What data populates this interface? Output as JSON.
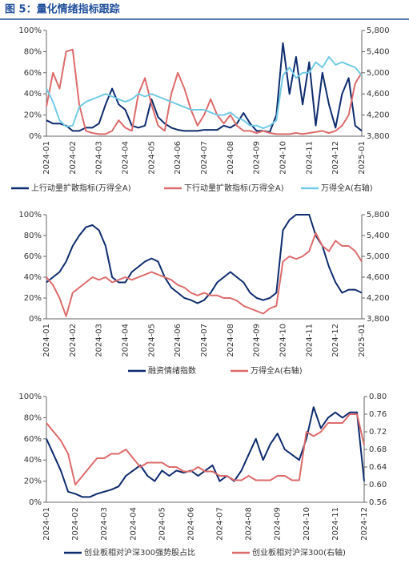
{
  "title": "图 5：量化情绪指标跟踪",
  "chart_data": [
    {
      "type": "line",
      "categories": [
        "2024-01",
        null,
        null,
        null,
        "2024-02",
        null,
        null,
        null,
        "2024-03",
        null,
        null,
        null,
        "2024-04",
        null,
        null,
        null,
        "2024-05",
        null,
        null,
        null,
        "2024-06",
        null,
        null,
        null,
        "2024-07",
        null,
        null,
        null,
        "2024-08",
        null,
        null,
        null,
        "2024-09",
        null,
        null,
        null,
        "2024-10",
        null,
        null,
        null,
        "2024-11",
        null,
        null,
        null,
        "2024-12",
        null,
        null,
        null,
        "2025-01"
      ],
      "ylim": [
        0,
        100
      ],
      "yticks": [
        {
          "value": 0,
          "label": "0%"
        },
        {
          "value": 20,
          "label": "20%"
        },
        {
          "value": 40,
          "label": "40%"
        },
        {
          "value": 60,
          "label": "60%"
        },
        {
          "value": 80,
          "label": "80%"
        },
        {
          "value": 100,
          "label": "100%"
        }
      ],
      "y2lim": [
        3800,
        5800
      ],
      "y2ticks": [
        {
          "value": 3800,
          "label": "3,800"
        },
        {
          "value": 4200,
          "label": "4,200"
        },
        {
          "value": 4600,
          "label": "4,600"
        },
        {
          "value": 5000,
          "label": "5,000"
        },
        {
          "value": 5400,
          "label": "5,400"
        },
        {
          "value": 5800,
          "label": "5,800"
        }
      ],
      "series": [
        {
          "name": "上行动量扩散指标(万得全A)",
          "color": "#0d2b6e",
          "values": [
            15,
            12,
            12,
            10,
            5,
            5,
            8,
            8,
            12,
            30,
            45,
            30,
            25,
            10,
            8,
            10,
            35,
            18,
            12,
            8,
            6,
            5,
            5,
            5,
            6,
            6,
            6,
            10,
            8,
            12,
            22,
            12,
            5,
            5,
            4,
            20,
            88,
            40,
            75,
            30,
            70,
            10,
            60,
            30,
            8,
            40,
            55,
            10,
            5
          ]
        },
        {
          "name": "下行动量扩散指标(万得全A)",
          "color": "#dd6b6b",
          "values": [
            28,
            60,
            45,
            80,
            82,
            30,
            5,
            3,
            2,
            2,
            5,
            15,
            8,
            5,
            40,
            55,
            30,
            10,
            5,
            40,
            60,
            45,
            25,
            10,
            20,
            35,
            20,
            12,
            20,
            10,
            5,
            5,
            3,
            5,
            3,
            2,
            2,
            2,
            3,
            2,
            3,
            4,
            5,
            3,
            5,
            10,
            20,
            50,
            60
          ]
        },
        {
          "name": "万得全A(右轴)",
          "color": "#72cbe6",
          "axis": "y2",
          "values": [
            4700,
            4450,
            4100,
            3980,
            4000,
            4350,
            4450,
            4500,
            4550,
            4600,
            4550,
            4500,
            4450,
            4500,
            4600,
            4550,
            4600,
            4550,
            4500,
            4450,
            4400,
            4350,
            4300,
            4300,
            4300,
            4250,
            4200,
            4200,
            4250,
            4150,
            4100,
            4000,
            4000,
            3950,
            4000,
            4100,
            4950,
            5100,
            4900,
            5000,
            5000,
            5200,
            5100,
            5300,
            5150,
            5200,
            5150,
            5100,
            4950
          ]
        }
      ]
    },
    {
      "type": "line",
      "categories": [
        "2024-01",
        null,
        null,
        null,
        "2024-02",
        null,
        null,
        null,
        "2024-03",
        null,
        null,
        null,
        "2024-04",
        null,
        null,
        null,
        "2024-05",
        null,
        null,
        null,
        "2024-06",
        null,
        null,
        null,
        "2024-07",
        null,
        null,
        null,
        "2024-08",
        null,
        null,
        null,
        "2024-09",
        null,
        null,
        null,
        "2024-10",
        null,
        null,
        null,
        "2024-11",
        null,
        null,
        null,
        "2024-12",
        null,
        null,
        null,
        "2025-01"
      ],
      "ylim": [
        0,
        100
      ],
      "yticks": [
        {
          "value": 0,
          "label": "0%"
        },
        {
          "value": 20,
          "label": "20%"
        },
        {
          "value": 40,
          "label": "40%"
        },
        {
          "value": 60,
          "label": "60%"
        },
        {
          "value": 80,
          "label": "80%"
        },
        {
          "value": 100,
          "label": "100%"
        }
      ],
      "y2lim": [
        3800,
        5800
      ],
      "y2ticks": [
        {
          "value": 3800,
          "label": "3,800"
        },
        {
          "value": 4200,
          "label": "4,200"
        },
        {
          "value": 4600,
          "label": "4,600"
        },
        {
          "value": 5000,
          "label": "5,000"
        },
        {
          "value": 5400,
          "label": "5,400"
        },
        {
          "value": 5800,
          "label": "5,800"
        }
      ],
      "series": [
        {
          "name": "融资情绪指数",
          "color": "#0d2b6e",
          "values": [
            35,
            40,
            45,
            55,
            70,
            80,
            88,
            90,
            85,
            70,
            40,
            35,
            35,
            45,
            50,
            55,
            58,
            55,
            40,
            30,
            25,
            20,
            18,
            15,
            18,
            25,
            35,
            40,
            45,
            40,
            35,
            25,
            20,
            18,
            20,
            25,
            85,
            95,
            100,
            100,
            100,
            80,
            70,
            50,
            35,
            25,
            28,
            28,
            25
          ]
        },
        {
          "name": "万得全A(右轴)",
          "color": "#dd6b6b",
          "axis": "y2",
          "values": [
            4600,
            4450,
            4200,
            3850,
            4300,
            4400,
            4500,
            4600,
            4550,
            4600,
            4500,
            4550,
            4600,
            4550,
            4600,
            4650,
            4700,
            4650,
            4600,
            4550,
            4450,
            4400,
            4300,
            4250,
            4300,
            4250,
            4250,
            4200,
            4200,
            4150,
            4050,
            4000,
            3950,
            3900,
            4000,
            4050,
            4900,
            5000,
            4950,
            5000,
            5100,
            5450,
            5200,
            5100,
            5300,
            5200,
            5200,
            5100,
            4900
          ]
        }
      ]
    },
    {
      "type": "line",
      "categories": [
        "2024-01",
        null,
        null,
        null,
        "2024-02",
        null,
        null,
        null,
        "2024-03",
        null,
        null,
        null,
        "2024-04",
        null,
        null,
        null,
        "2024-05",
        null,
        null,
        null,
        "2024-06",
        null,
        null,
        null,
        "2024-07",
        null,
        null,
        null,
        "2024-08",
        null,
        null,
        null,
        "2024-09",
        null,
        null,
        null,
        "2024-10",
        null,
        null,
        null,
        "2024-11",
        null,
        null,
        null,
        "2024-12"
      ],
      "ylim": [
        0,
        100
      ],
      "yticks": [
        {
          "value": 0,
          "label": "0%"
        },
        {
          "value": 20,
          "label": "20%"
        },
        {
          "value": 40,
          "label": "40%"
        },
        {
          "value": 60,
          "label": "60%"
        },
        {
          "value": 80,
          "label": "80%"
        },
        {
          "value": 100,
          "label": "100%"
        }
      ],
      "y2lim": [
        0.56,
        0.8
      ],
      "y2ticks": [
        {
          "value": 0.56,
          "label": "0.56"
        },
        {
          "value": 0.6,
          "label": "0.60"
        },
        {
          "value": 0.64,
          "label": "0.64"
        },
        {
          "value": 0.68,
          "label": "0.68"
        },
        {
          "value": 0.72,
          "label": "0.72"
        },
        {
          "value": 0.76,
          "label": "0.76"
        },
        {
          "value": 0.8,
          "label": "0.80"
        }
      ],
      "series": [
        {
          "name": "创业板相对沪深300强势股占比",
          "color": "#0d2b6e",
          "values": [
            60,
            45,
            30,
            10,
            8,
            5,
            5,
            8,
            10,
            12,
            15,
            25,
            30,
            35,
            25,
            20,
            30,
            25,
            30,
            28,
            30,
            25,
            30,
            35,
            20,
            25,
            20,
            30,
            45,
            60,
            40,
            55,
            65,
            50,
            45,
            40,
            60,
            90,
            70,
            80,
            85,
            80,
            85,
            85,
            20
          ]
        },
        {
          "name": "创业板相对沪深300(右轴)",
          "color": "#dd6b6b",
          "axis": "y2",
          "values": [
            0.74,
            0.72,
            0.7,
            0.67,
            0.6,
            0.62,
            0.64,
            0.66,
            0.66,
            0.67,
            0.67,
            0.68,
            0.66,
            0.64,
            0.65,
            0.65,
            0.65,
            0.64,
            0.64,
            0.63,
            0.63,
            0.64,
            0.63,
            0.63,
            0.62,
            0.62,
            0.61,
            0.61,
            0.62,
            0.61,
            0.61,
            0.61,
            0.62,
            0.62,
            0.61,
            0.61,
            0.72,
            0.71,
            0.72,
            0.74,
            0.74,
            0.74,
            0.76,
            0.76,
            0.69
          ]
        }
      ]
    }
  ]
}
